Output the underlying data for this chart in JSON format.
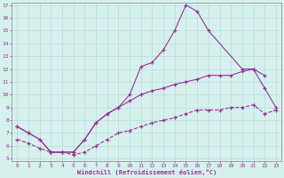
{
  "x_all": [
    0,
    1,
    2,
    3,
    4,
    5,
    6,
    7,
    8,
    9,
    10,
    11,
    12,
    13,
    14,
    15,
    16,
    17,
    18,
    19,
    20,
    21,
    22,
    23
  ],
  "curve_main": {
    "x": [
      0,
      1,
      2,
      3,
      4,
      5,
      6,
      7,
      8,
      9,
      10,
      11,
      12,
      13,
      14,
      15,
      16,
      17,
      20,
      21,
      22
    ],
    "y": [
      7.5,
      7.0,
      6.5,
      5.5,
      5.5,
      5.5,
      6.5,
      7.8,
      8.5,
      9.0,
      10.0,
      12.2,
      12.5,
      13.5,
      15.0,
      17.0,
      16.5,
      15.0,
      12.0,
      12.0,
      11.5
    ],
    "linestyle": "-"
  },
  "curve_mid": {
    "x": [
      0,
      1,
      2,
      3,
      4,
      5,
      6,
      7,
      8,
      9,
      10,
      11,
      12,
      13,
      14,
      15,
      16,
      17,
      18,
      19,
      20,
      21,
      22,
      23
    ],
    "y": [
      7.5,
      7.0,
      6.5,
      5.5,
      5.5,
      5.5,
      6.5,
      7.8,
      8.5,
      9.0,
      9.5,
      10.0,
      10.3,
      10.5,
      10.8,
      11.0,
      11.2,
      11.5,
      11.5,
      11.5,
      11.8,
      12.0,
      10.5,
      9.0
    ],
    "linestyle": "-"
  },
  "curve_bot": {
    "x": [
      0,
      1,
      2,
      3,
      4,
      5,
      6,
      7,
      8,
      9,
      10,
      11,
      12,
      13,
      14,
      15,
      16,
      17,
      18,
      19,
      20,
      21,
      22,
      23
    ],
    "y": [
      6.5,
      6.2,
      5.8,
      5.5,
      5.5,
      5.3,
      5.5,
      6.0,
      6.5,
      7.0,
      7.2,
      7.5,
      7.8,
      8.0,
      8.2,
      8.5,
      8.8,
      8.8,
      8.8,
      9.0,
      9.0,
      9.2,
      8.5,
      8.8
    ],
    "linestyle": "--"
  },
  "ylim": [
    5,
    17
  ],
  "yticks": [
    5,
    6,
    7,
    8,
    9,
    10,
    11,
    12,
    13,
    14,
    15,
    16,
    17
  ],
  "xticks": [
    0,
    1,
    2,
    3,
    4,
    5,
    6,
    7,
    8,
    9,
    10,
    11,
    12,
    13,
    14,
    15,
    16,
    17,
    18,
    19,
    20,
    21,
    22,
    23
  ],
  "xlabel": "Windchill (Refroidissement éolien,°C)",
  "line_color": "#993399",
  "bg_color": "#d5f0ed",
  "grid_color": "#b0d8d8"
}
